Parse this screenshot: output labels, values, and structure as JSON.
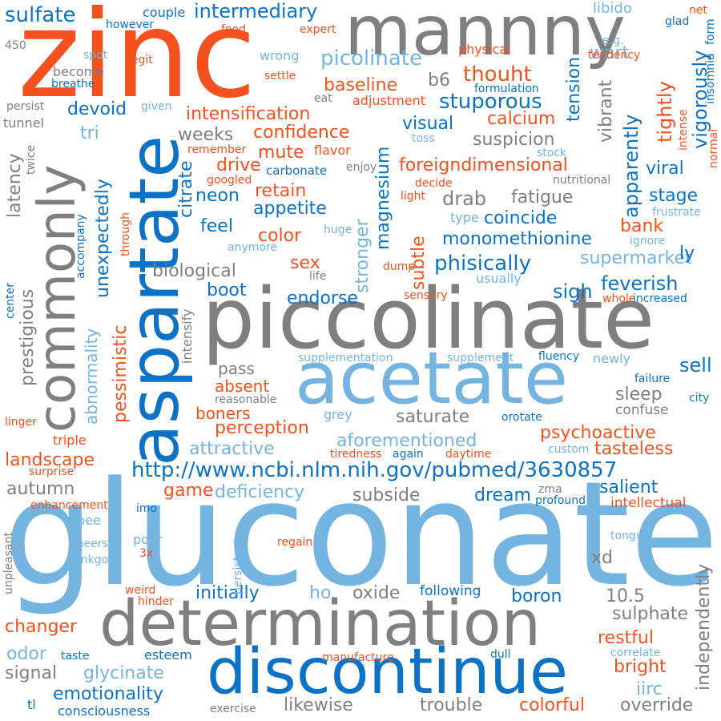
{
  "palette": {
    "orange": "#f4511e",
    "blue": "#0a73c8",
    "light_blue": "#74b4e0",
    "gray": "#7f7f7f"
  },
  "words": {
    "w000": "zinc",
    "w001": "gluconate",
    "w002": "piccolinate",
    "w003": "mannny",
    "w004": "acetate",
    "w005": "aspartate",
    "w006": "determination",
    "w007": "discontinue",
    "w008": "commonly",
    "w009": "http://www.ncbi.nlm.nih.gov/pubmed/3630857",
    "w010": "picolinate",
    "w011": "intermediary",
    "w012": "sulfate",
    "w013": "stuporous",
    "w014": "thouht",
    "w015": "intensification",
    "w016": "confidence",
    "w017": "foreigndimensional",
    "w018": "monomethionine",
    "w019": "phisically",
    "w020": "supermarket",
    "w021": "aforementioned",
    "w022": "psychoactive",
    "w023": "baseline",
    "w024": "suspicion",
    "w025": "appetite",
    "w026": "endorse",
    "w027": "perception",
    "w028": "deficiency",
    "w029": "determination",
    "w030": "landscape",
    "w031": "attractive",
    "w032": "tasteless",
    "w033": "emotionality",
    "w034": "consciousness",
    "w035": "boron",
    "w036": "initially",
    "w037": "likewise",
    "w038": "trouble",
    "w039": "colorful",
    "w040": "override",
    "w041": "glycinate",
    "w042": "restful",
    "w043": "bright",
    "w044": "salient",
    "w045": "intellectual",
    "w046": "feverish",
    "w047": "sell",
    "w048": "sleep",
    "w049": "confuse",
    "w050": "saturate",
    "w051": "dream",
    "w052": "subside",
    "w053": "game",
    "w054": "autumn",
    "w055": "changer",
    "w056": "odor",
    "w057": "signal",
    "w058": "oxide",
    "w059": "following",
    "w060": "sulphate",
    "w061": "10.5",
    "w062": "xd",
    "w063": "calcium",
    "w064": "visual",
    "w065": "mute",
    "w066": "drive",
    "w067": "retain",
    "w068": "neon",
    "w069": "feel",
    "w070": "color",
    "w071": "sex",
    "w072": "boot",
    "w073": "sigh",
    "w074": "biological",
    "w075": "pass",
    "w076": "absent",
    "w077": "boners",
    "w078": "weeks",
    "w079": "drab",
    "w080": "fatigue",
    "w081": "coincide",
    "w082": "viral",
    "w083": "stage",
    "w084": "bank",
    "w085": "ly",
    "w086": "couple",
    "w087": "libido",
    "w088": "wart",
    "w089": "devoid",
    "w090": "tri",
    "w091": "b6",
    "w092": "carbonate",
    "w093": "flavor",
    "w094": "settle",
    "w095": "become",
    "w096": "breathe",
    "w097": "legit",
    "w098": "physical",
    "w099": "expert",
    "w100": "food",
    "w101": "however",
    "w102": "spot",
    "w103": "wrong",
    "w104": "adjustment",
    "w105": "eat",
    "w106": "formulation",
    "w107": "tendency",
    "w108": "net",
    "w109": "glad",
    "w110": "e.g.",
    "w111": "persist",
    "w112": "given",
    "w113": "tunnel",
    "w114": "remember",
    "w115": "googled",
    "w116": "enjoy",
    "w117": "toss",
    "w118": "stock",
    "w119": "nutritional",
    "w120": "decide",
    "w121": "light",
    "w122": "type",
    "w123": "huge",
    "w124": "ignore",
    "w125": "frustrate",
    "w126": "anymore",
    "w127": "dump",
    "w128": "life",
    "w129": "usually",
    "w130": "sensory",
    "w131": "whole",
    "w132": "increased",
    "w133": "supplementation",
    "w134": "supplement",
    "w135": "fluency",
    "w136": "newly",
    "w137": "failure",
    "w138": "city",
    "w139": "reasonable",
    "w140": "grey",
    "w141": "orotate",
    "w142": "custom",
    "w143": "linger",
    "w144": "triple",
    "w145": "surprise",
    "w146": "tiredness",
    "w147": "again",
    "w148": "daytime",
    "w149": "zma",
    "w150": "profound",
    "w151": "enhancement",
    "w152": "imo",
    "w153": "pee",
    "w154": "cheers",
    "w155": "ginkgo",
    "w156": "pour",
    "w157": "3x",
    "w158": "regain",
    "w159": "tongue",
    "w160": "weird",
    "w161": "hinder",
    "w162": "ho",
    "w163": "taste",
    "w164": "esteem",
    "w165": "manufacture",
    "w166": "dull",
    "w167": "correlate",
    "w168": "exercise",
    "w169": "tl",
    "w170": "iirc",
    "w171": "450",
    "w172": "tightly",
    "w173": "tension",
    "w174": "vibrant",
    "w175": "apparently",
    "w176": "vigorously",
    "w177": "form",
    "w178": "insomnia",
    "w179": "intense",
    "w180": "normal",
    "w181": "magnesium",
    "w182": "stronger",
    "w183": "subtle",
    "w184": "citrate",
    "w185": "unexpectedly",
    "w186": "abnormality",
    "w187": "pessimistic",
    "w188": "intensify",
    "w189": "prestigious",
    "w190": "latency",
    "w191": "twice",
    "w192": "through",
    "w193": "accompany",
    "w194": "center",
    "w195": "unpleasant",
    "w196": "persistent",
    "w197": "independently",
    "w198": "vigorously"
  }
}
